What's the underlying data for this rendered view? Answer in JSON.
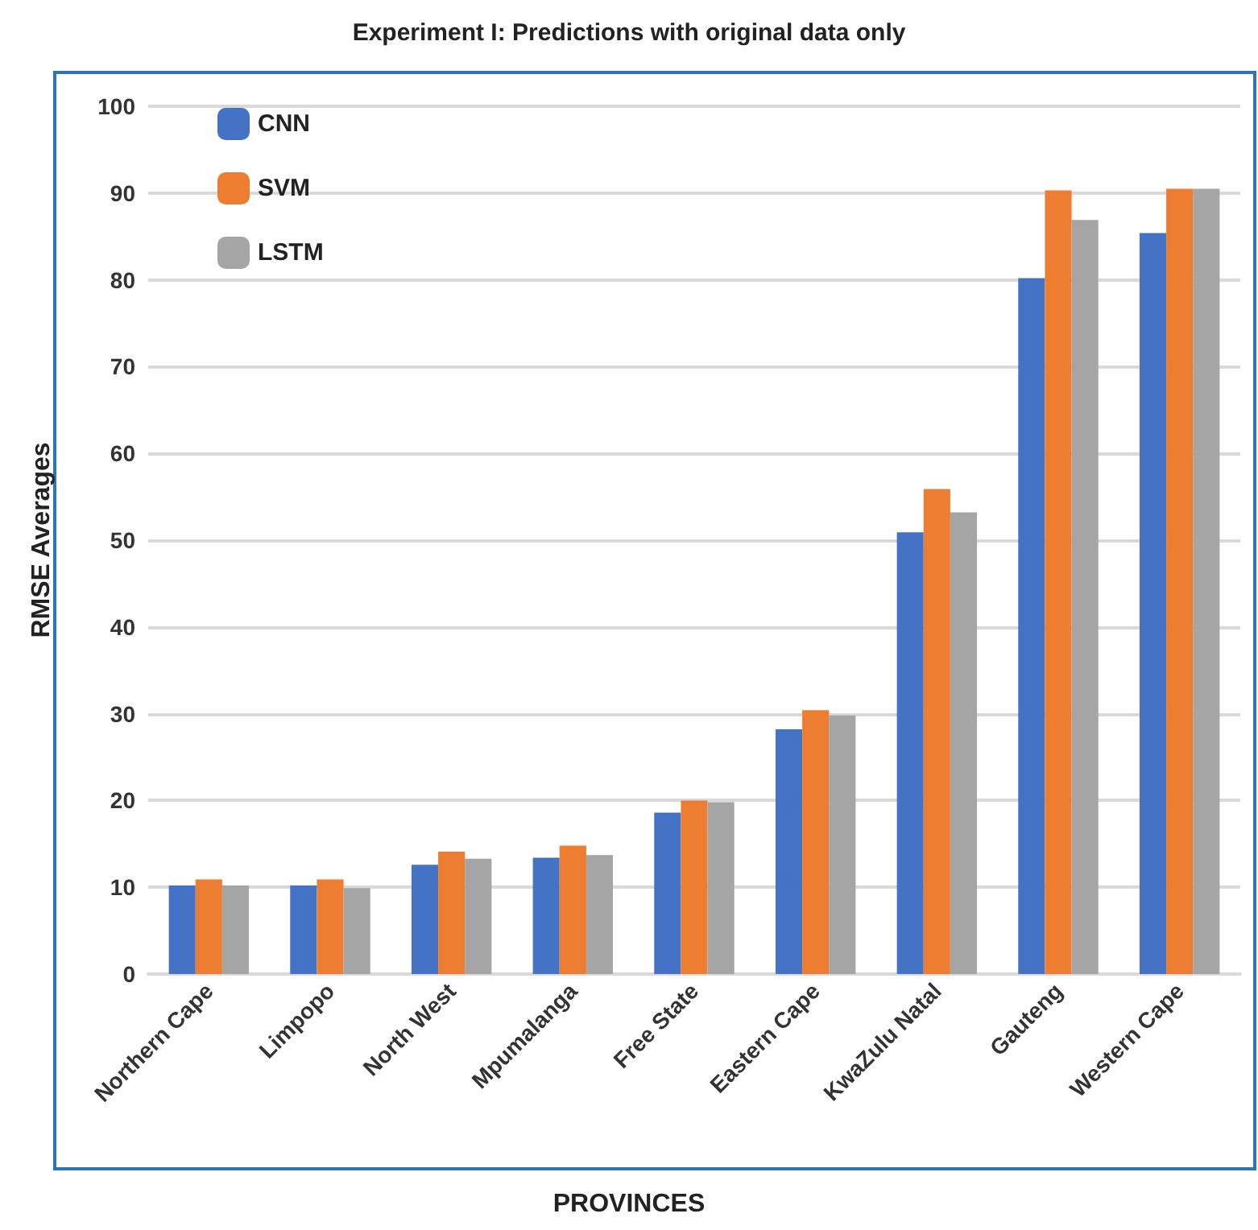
{
  "chart_data": {
    "type": "bar",
    "title": "Experiment I: Predictions with original data only",
    "xlabel": "PROVINCES",
    "ylabel": "RMSE Averages",
    "categories": [
      "Northern Cape",
      "Limpopo",
      "North West",
      "Mpumalanga",
      "Free State",
      "Eastern Cape",
      "KwaZulu Natal",
      "Gauteng",
      "Western Cape"
    ],
    "series": [
      {
        "name": "CNN",
        "color": "#4472c4",
        "values": [
          10.2,
          10.2,
          12.6,
          13.4,
          18.6,
          28.2,
          50.9,
          80.2,
          85.4
        ]
      },
      {
        "name": "SVM",
        "color": "#ed7d31",
        "values": [
          10.9,
          10.9,
          14.1,
          14.8,
          20.0,
          30.4,
          55.9,
          90.3,
          90.5
        ]
      },
      {
        "name": "LSTM",
        "color": "#a5a5a5",
        "values": [
          10.2,
          9.9,
          13.3,
          13.7,
          19.8,
          29.8,
          53.2,
          86.9,
          90.5
        ]
      }
    ],
    "ylim": [
      0,
      100
    ],
    "yticks": [
      0,
      10,
      20,
      30,
      40,
      50,
      60,
      70,
      80,
      90,
      100
    ],
    "grid": "y",
    "legend": "top left"
  }
}
